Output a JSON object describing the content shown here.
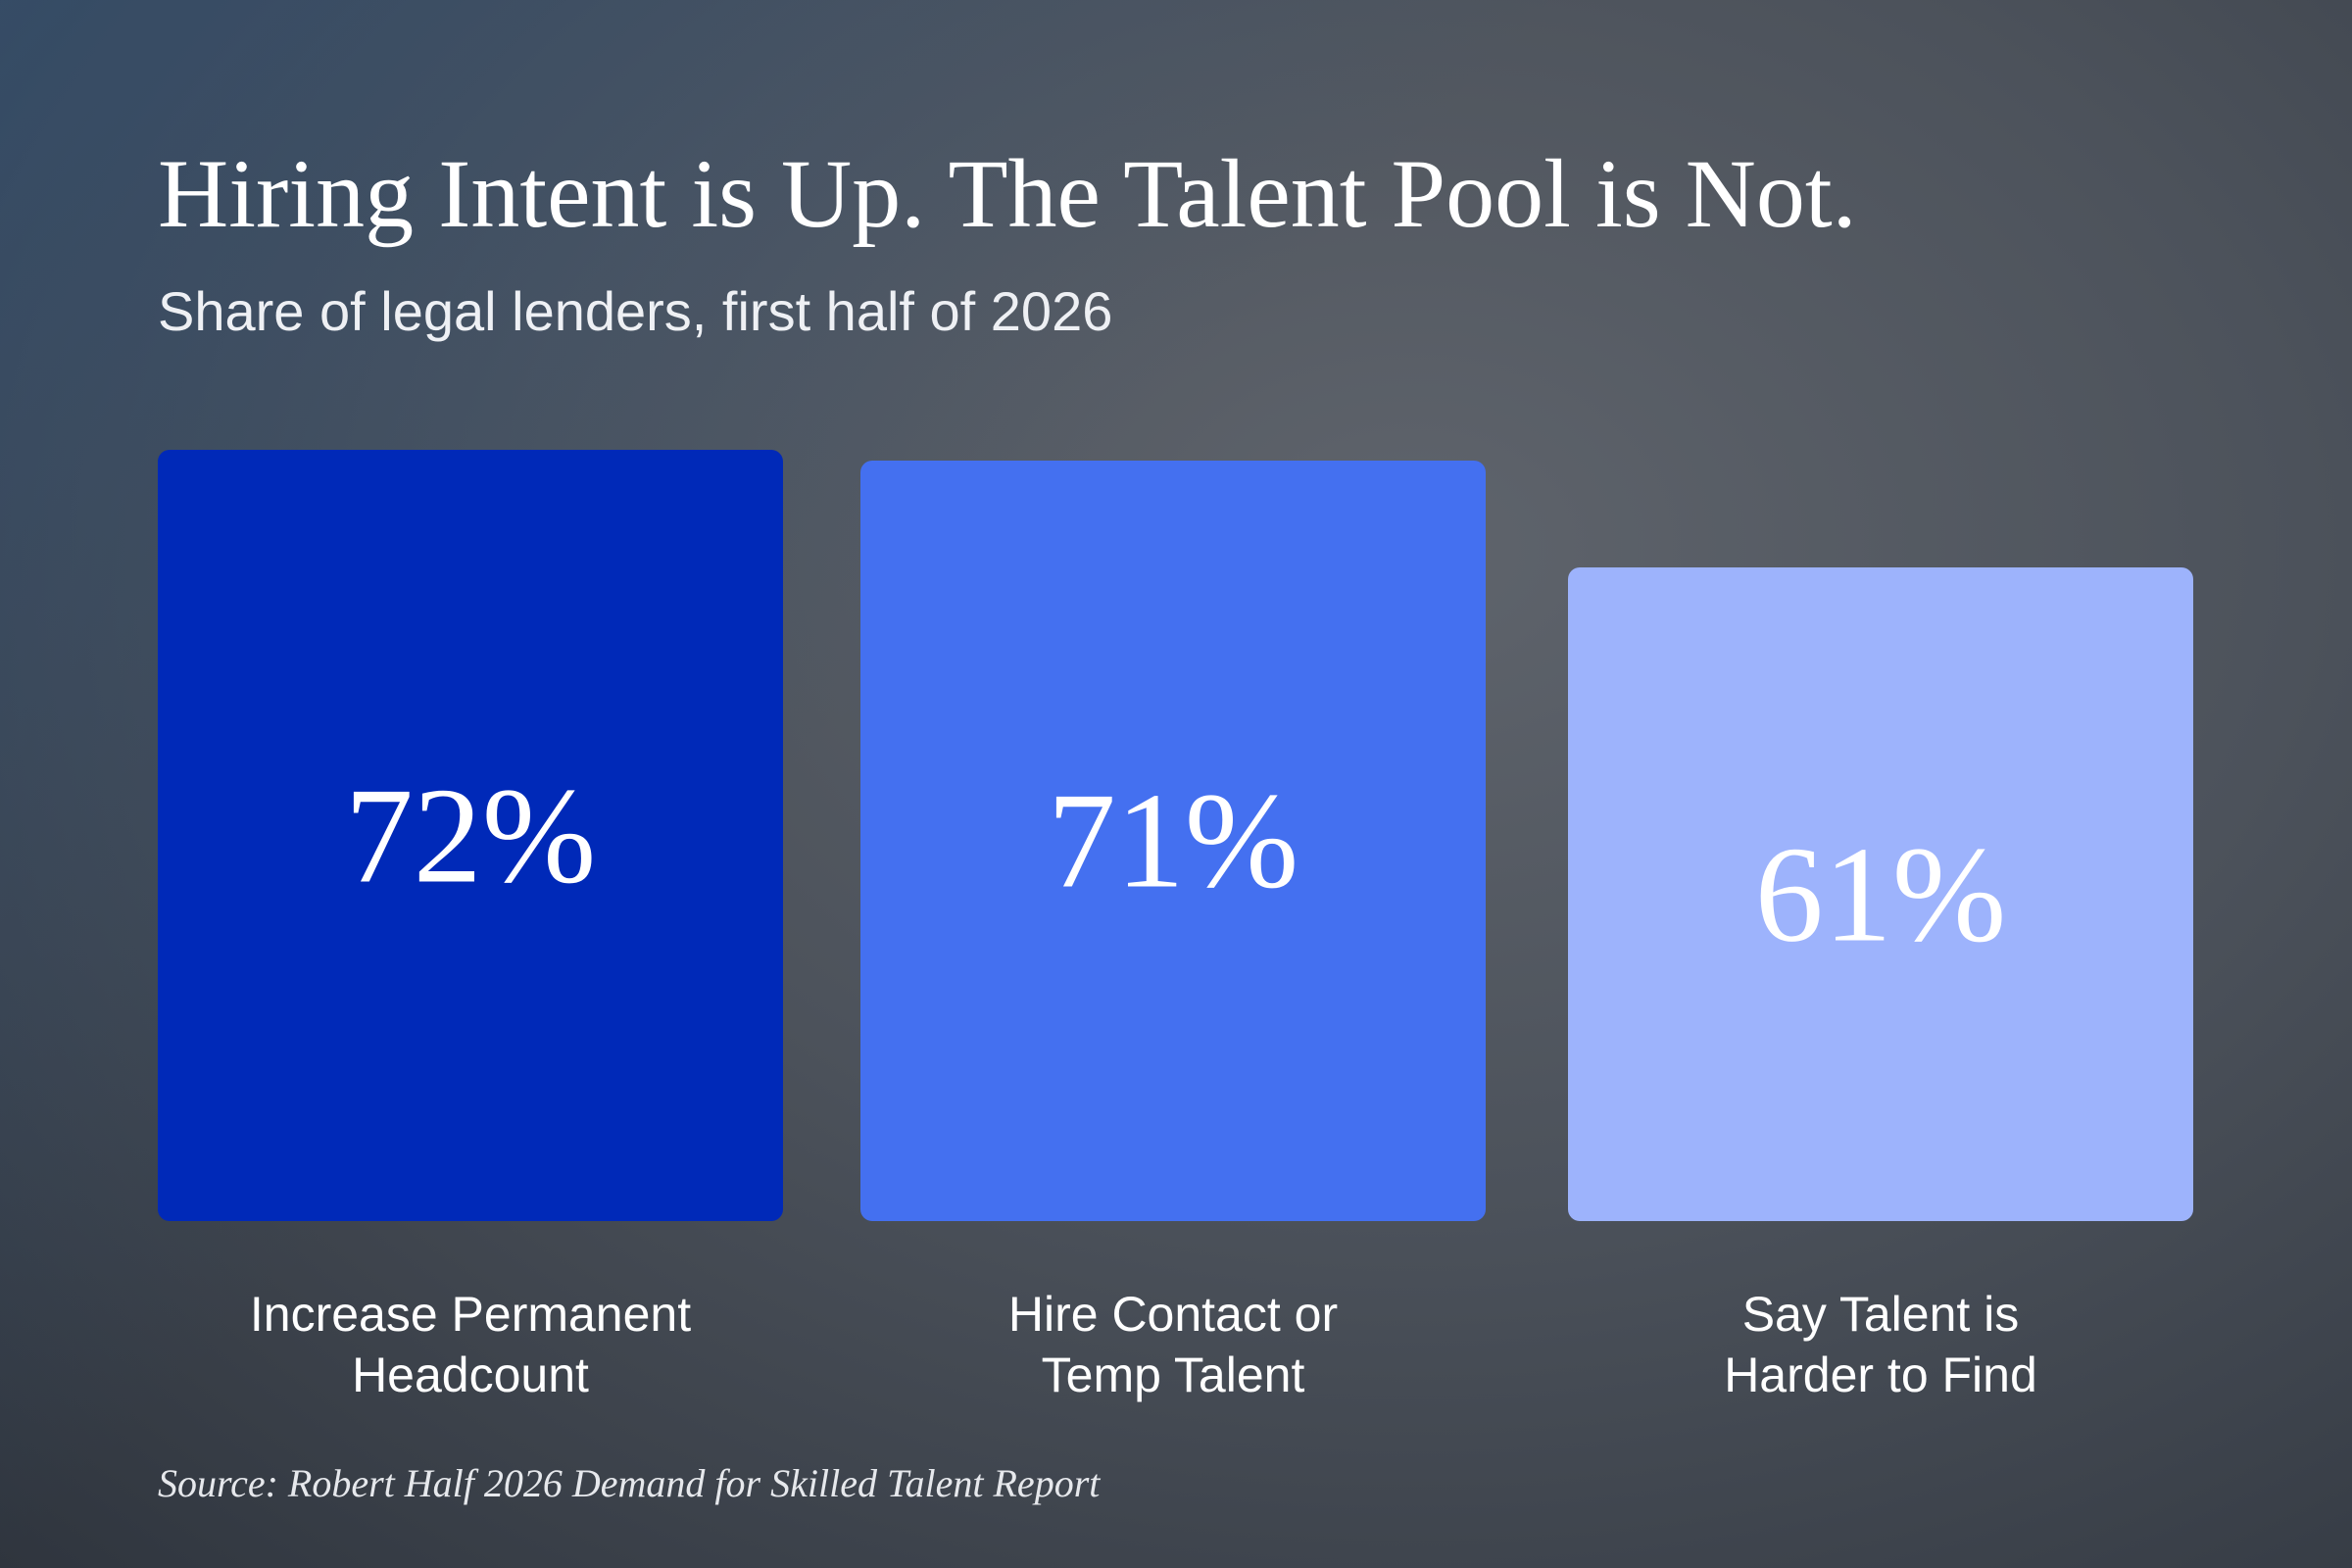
{
  "chart_data": {
    "type": "bar",
    "title": "Hiring Intent is Up. The Talent Pool is Not.",
    "subtitle": "Share of legal lenders, first half of 2026",
    "categories": [
      "Increase Permanent\nHeadcount",
      "Hire Contact or\nTemp Talent",
      "Say Talent is\nHarder to Find"
    ],
    "values": [
      72,
      71,
      61
    ],
    "value_labels": [
      "72%",
      "71%",
      "61%"
    ],
    "colors": [
      "#0029b8",
      "#4470f0",
      "#9db3fc"
    ],
    "source": "Source: Robert Half 2026 Demand for Skilled Talent Report"
  }
}
